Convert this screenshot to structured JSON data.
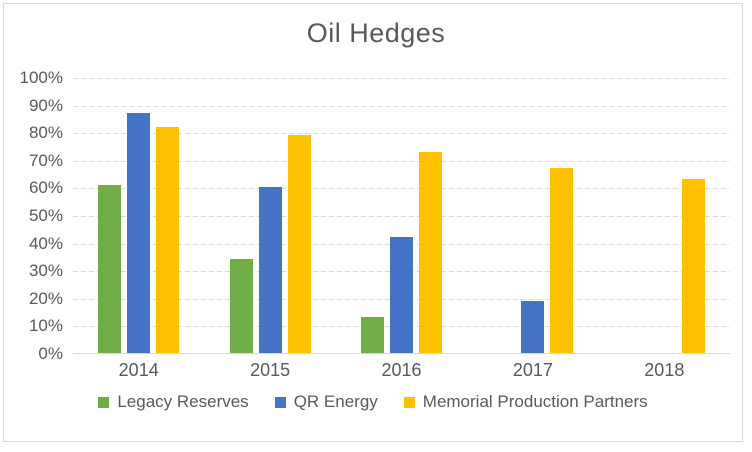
{
  "window": {
    "background_color": "#ffffff",
    "frame_border_color": "#d9d9d9"
  },
  "chart_data": {
    "type": "bar",
    "title": "Oil Hedges",
    "categories": [
      "2014",
      "2015",
      "2016",
      "2017",
      "2018"
    ],
    "series": [
      {
        "name": "Legacy Reserves",
        "color": "#70ad47",
        "values": [
          61,
          34,
          13,
          0,
          0
        ]
      },
      {
        "name": "QR Energy",
        "color": "#4472c4",
        "values": [
          87,
          60,
          42,
          19,
          0
        ]
      },
      {
        "name": "Memorial Production Partners",
        "color": "#ffc000",
        "values": [
          82,
          79,
          73,
          67,
          63
        ]
      }
    ],
    "y_axis": {
      "min": 0,
      "max": 100,
      "step": 10,
      "format": "percent",
      "tick_labels": [
        "0%",
        "10%",
        "20%",
        "30%",
        "40%",
        "50%",
        "60%",
        "70%",
        "80%",
        "90%",
        "100%"
      ]
    },
    "x_axis": {
      "tick_labels": [
        "2014",
        "2015",
        "2016",
        "2017",
        "2018"
      ]
    },
    "grid": true,
    "gridline_color": "#d9d9d9",
    "axis_line_color": "#d9d9d9",
    "text_color": "#595959",
    "legend_position": "bottom",
    "ylim": [
      0,
      100
    ]
  }
}
